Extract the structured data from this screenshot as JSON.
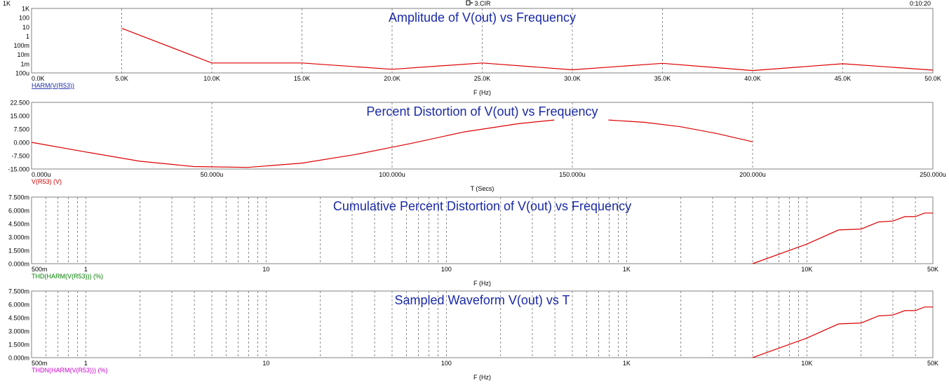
{
  "header": {
    "left_label": "1K",
    "file_icon": "circuit-file-icon",
    "file_name": "3.CIR",
    "time": "0:10:20"
  },
  "colors": {
    "grid": "#707070",
    "frame": "#808080",
    "trace": "#dd0000",
    "title": "#1a2aa8",
    "trace_label_1": "#1a2aa8",
    "trace_label_2": "#d00000",
    "trace_label_3": "#008000",
    "trace_label_4": "#d000d0"
  },
  "chart_data": [
    {
      "type": "line",
      "title": "Amplitude of V(out) vs Frequency",
      "xlabel": "F (Hz)",
      "trace_label": "HARM(V(R53))",
      "xscale": "linear",
      "yscale": "log",
      "xlim": [
        0,
        50000
      ],
      "ylim": [
        0.0001,
        1000
      ],
      "x_ticks": [
        0,
        5000,
        10000,
        15000,
        20000,
        25000,
        30000,
        35000,
        40000,
        45000,
        50000
      ],
      "x_tick_labels": [
        "0.0K",
        "5.0K",
        "10.0K",
        "15.0K",
        "20.0K",
        "25.0K",
        "30.0K",
        "35.0K",
        "40.0K",
        "45.0K",
        "50.0K"
      ],
      "y_ticks": [
        1000,
        100,
        10,
        1,
        0.1,
        0.01,
        0.001,
        0.0001
      ],
      "y_tick_labels": [
        "1K",
        "100",
        "10",
        "1",
        "100m",
        "10m",
        "1m",
        "100u"
      ],
      "grid": "vertical dashed",
      "series": [
        {
          "x": [
            5000,
            10000,
            15000,
            20000,
            25000,
            30000,
            35000,
            40000,
            45000,
            50000
          ],
          "y": [
            7,
            0.0012,
            0.0012,
            0.00025,
            0.0012,
            0.00022,
            0.0011,
            0.00018,
            0.001,
            0.0002
          ]
        }
      ]
    },
    {
      "type": "line",
      "title": "Percent Distortion of V(out) vs Frequency",
      "xlabel": "T (Secs)",
      "trace_label": "V(R53) (V)",
      "xscale": "linear",
      "yscale": "linear",
      "xlim": [
        0,
        0.00025
      ],
      "ylim": [
        -15,
        22.5
      ],
      "x_ticks": [
        0,
        5e-05,
        0.0001,
        0.00015,
        0.0002,
        0.00025
      ],
      "x_tick_labels": [
        "0.000u",
        "50.000u",
        "100.000u",
        "150.000u",
        "200.000u",
        "250.000u"
      ],
      "y_ticks": [
        22.5,
        15,
        7.5,
        0,
        -7.5,
        -15
      ],
      "y_tick_labels": [
        "22.500",
        "15.000",
        "7.500",
        "0.000",
        "-7.500",
        "-15.000"
      ],
      "grid": "vertical dashed",
      "series": [
        {
          "x": [
            0,
            1.5e-05,
            3e-05,
            4.5e-05,
            6e-05,
            7.5e-05,
            9e-05,
            0.000105,
            0.00012,
            0.000135,
            0.000145
          ],
          "y": [
            0,
            -5.4,
            -10.6,
            -13.6,
            -14.1,
            -11.7,
            -6.8,
            -0.7,
            5.9,
            10.5,
            12.6
          ]
        },
        {
          "x": [
            0.00016,
            0.00017,
            0.00018,
            0.00019,
            0.0002
          ],
          "y": [
            12.6,
            11.3,
            8.8,
            5.0,
            0.3
          ]
        }
      ]
    },
    {
      "type": "line",
      "title": "Cumulative Percent Distortion of V(out) vs Frequency",
      "xlabel": "F (Hz)",
      "trace_label": "THD(HARM(V(R53))) (%)",
      "xscale": "log",
      "yscale": "linear",
      "xlim": [
        0.5,
        50000
      ],
      "ylim": [
        0,
        0.0075
      ],
      "x_tick_values": [
        0.5,
        1,
        10,
        100,
        1000,
        10000,
        50000
      ],
      "x_tick_labels": [
        "500m",
        "1",
        "10",
        "100",
        "1K",
        "10K",
        "50K"
      ],
      "y_ticks": [
        0.0075,
        0.006,
        0.0045,
        0.003,
        0.0015,
        0
      ],
      "y_tick_labels": [
        "7.500m",
        "6.000m",
        "4.500m",
        "3.000m",
        "1.500m",
        "0.000m"
      ],
      "grid": "vertical dashed (decade subdivisions)",
      "series": [
        {
          "x": [
            5000,
            10000,
            15000,
            20000,
            25000,
            30000,
            35000,
            40000,
            45000,
            50000
          ],
          "y": [
            0,
            0.0022,
            0.0038,
            0.0039,
            0.0047,
            0.0048,
            0.0053,
            0.0053,
            0.0057,
            0.0057
          ]
        }
      ]
    },
    {
      "type": "line",
      "title": "Sampled Waveform  V(out) vs T",
      "xlabel": "F (Hz)",
      "trace_label": "THDN(HARM(V(R53))) (%)",
      "xscale": "log",
      "yscale": "linear",
      "xlim": [
        0.5,
        50000
      ],
      "ylim": [
        0,
        0.0075
      ],
      "x_tick_values": [
        0.5,
        1,
        10,
        100,
        1000,
        10000,
        50000
      ],
      "x_tick_labels": [
        "500m",
        "1",
        "10",
        "100",
        "1K",
        "10K",
        "50K"
      ],
      "y_ticks": [
        0.0075,
        0.006,
        0.0045,
        0.003,
        0.0015,
        0
      ],
      "y_tick_labels": [
        "7.500m",
        "6.000m",
        "4.500m",
        "3.000m",
        "1.500m",
        "0.000m"
      ],
      "grid": "vertical dashed (decade subdivisions)",
      "series": [
        {
          "x": [
            5000,
            10000,
            15000,
            20000,
            25000,
            30000,
            35000,
            40000,
            45000,
            50000
          ],
          "y": [
            0,
            0.0022,
            0.0038,
            0.0039,
            0.0047,
            0.0048,
            0.0053,
            0.0053,
            0.0057,
            0.0057
          ]
        }
      ]
    }
  ]
}
